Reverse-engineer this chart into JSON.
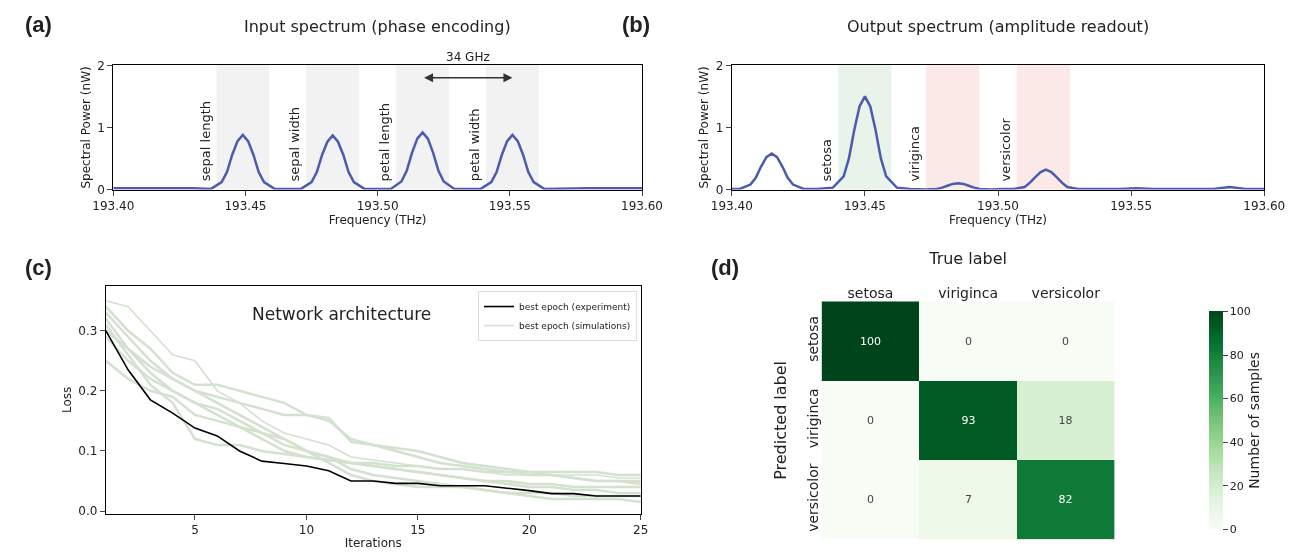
{
  "chart_data": [
    {
      "type": "line",
      "title": "Input spectrum (phase encoding)",
      "xlabel": "Frequency (THz)",
      "ylabel": "Spectral Power (nW)",
      "annotations": [
        "(a)",
        "34 GHz"
      ],
      "x": [
        193.4,
        193.43,
        193.437,
        193.441,
        193.443,
        193.445,
        193.447,
        193.449,
        193.451,
        193.453,
        193.455,
        193.457,
        193.461,
        193.466,
        193.471,
        193.475,
        193.477,
        193.479,
        193.481,
        193.483,
        193.485,
        193.487,
        193.489,
        193.491,
        193.495,
        193.5,
        193.505,
        193.509,
        193.511,
        193.513,
        193.515,
        193.517,
        193.519,
        193.521,
        193.523,
        193.525,
        193.529,
        193.534,
        193.539,
        193.543,
        193.545,
        193.547,
        193.549,
        193.551,
        193.553,
        193.555,
        193.557,
        193.559,
        193.563,
        193.58,
        193.6
      ],
      "series": [
        {
          "color": "#4a5bb0",
          "values": [
            0.02,
            0.02,
            0.01,
            0.12,
            0.28,
            0.56,
            0.78,
            0.88,
            0.78,
            0.56,
            0.28,
            0.12,
            0.01,
            0.01,
            0.01,
            0.12,
            0.28,
            0.56,
            0.77,
            0.87,
            0.77,
            0.56,
            0.28,
            0.12,
            0.01,
            0.01,
            0.01,
            0.13,
            0.3,
            0.59,
            0.82,
            0.92,
            0.82,
            0.59,
            0.3,
            0.13,
            0.01,
            0.01,
            0.01,
            0.12,
            0.28,
            0.56,
            0.78,
            0.88,
            0.78,
            0.56,
            0.28,
            0.12,
            0.01,
            0.02,
            0.02
          ]
        }
      ],
      "bands": [
        {
          "axis": "x",
          "from": 193.439,
          "to": 193.459,
          "label": "sepal length",
          "color": "#f2f2f2"
        },
        {
          "axis": "x",
          "from": 193.473,
          "to": 193.493,
          "label": "sepal width",
          "color": "#f2f2f2"
        },
        {
          "axis": "x",
          "from": 193.507,
          "to": 193.527,
          "label": "petal length",
          "color": "#f2f2f2"
        },
        {
          "axis": "x",
          "from": 193.541,
          "to": 193.561,
          "label": "petal width",
          "color": "#f2f2f2"
        }
      ],
      "xlim": [
        193.4,
        193.6
      ],
      "xticks": [
        {
          "value": 193.4,
          "label": "193.40"
        },
        {
          "value": 193.45,
          "label": "193.45"
        },
        {
          "value": 193.5,
          "label": "193.50"
        },
        {
          "value": 193.55,
          "label": "193.55"
        },
        {
          "value": 193.6,
          "label": "193.60"
        }
      ],
      "ylim": [
        0,
        2
      ],
      "yticks": [
        0,
        1,
        2
      ],
      "grid": false,
      "legend": false,
      "marker": "none",
      "line_style": "solid"
    },
    {
      "type": "line",
      "title": "Output spectrum (amplitude readout)",
      "xlabel": "Frequency (THz)",
      "ylabel": "Spectral Power (nW)",
      "annotations": [
        "(b)"
      ],
      "x": [
        193.4,
        193.403,
        193.407,
        193.409,
        193.411,
        193.413,
        193.415,
        193.417,
        193.419,
        193.421,
        193.423,
        193.427,
        193.432,
        193.438,
        193.442,
        193.444,
        193.446,
        193.448,
        193.45,
        193.452,
        193.454,
        193.456,
        193.458,
        193.462,
        193.467,
        193.473,
        193.477,
        193.479,
        193.481,
        193.483,
        193.485,
        193.487,
        193.489,
        193.491,
        193.493,
        193.497,
        193.502,
        193.506,
        193.51,
        193.512,
        193.514,
        193.516,
        193.518,
        193.52,
        193.522,
        193.524,
        193.526,
        193.53,
        193.54,
        193.546,
        193.552,
        193.558,
        193.57,
        193.581,
        193.587,
        193.593,
        193.6
      ],
      "series": [
        {
          "color": "#4a5bb0",
          "values": [
            0.01,
            0.01,
            0.08,
            0.19,
            0.37,
            0.52,
            0.58,
            0.52,
            0.37,
            0.19,
            0.08,
            0.01,
            0.01,
            0.03,
            0.21,
            0.5,
            0.96,
            1.34,
            1.5,
            1.34,
            0.96,
            0.5,
            0.21,
            0.03,
            0.01,
            0.0,
            0.01,
            0.03,
            0.06,
            0.09,
            0.1,
            0.09,
            0.06,
            0.03,
            0.01,
            0.0,
            0.01,
            0.01,
            0.04,
            0.11,
            0.2,
            0.28,
            0.32,
            0.28,
            0.2,
            0.11,
            0.04,
            0.01,
            0.01,
            0.01,
            0.02,
            0.01,
            0.01,
            0.01,
            0.04,
            0.01,
            0.01
          ]
        }
      ],
      "bands": [
        {
          "axis": "x",
          "from": 193.44,
          "to": 193.46,
          "label": "setosa",
          "color": "#e8f3ea"
        },
        {
          "axis": "x",
          "from": 193.473,
          "to": 193.493,
          "label": "viriginca",
          "color": "#fbe9e8"
        },
        {
          "axis": "x",
          "from": 193.507,
          "to": 193.527,
          "label": "versicolor",
          "color": "#fbe9e8"
        }
      ],
      "xlim": [
        193.4,
        193.6
      ],
      "xticks": [
        {
          "value": 193.4,
          "label": "193.40"
        },
        {
          "value": 193.45,
          "label": "193.45"
        },
        {
          "value": 193.5,
          "label": "193.50"
        },
        {
          "value": 193.55,
          "label": "193.55"
        },
        {
          "value": 193.6,
          "label": "193.60"
        }
      ],
      "ylim": [
        0,
        2
      ],
      "yticks": [
        0,
        1,
        2
      ],
      "grid": false,
      "legend": false,
      "marker": "none",
      "line_style": "solid"
    },
    {
      "type": "line",
      "xlabel": "Iterations",
      "ylabel": "Loss",
      "annotations": [
        "(c)",
        "Network architecture"
      ],
      "x": [
        1,
        2,
        3,
        4,
        5,
        6,
        7,
        8,
        9,
        10,
        11,
        12,
        13,
        14,
        15,
        16,
        17,
        18,
        19,
        20,
        21,
        22,
        23,
        24,
        25
      ],
      "series": [
        {
          "name": "best epoch (simulations)",
          "color": "#d3e1cf",
          "values": [
            0.35,
            0.34,
            0.3,
            0.26,
            0.25,
            0.2,
            0.18,
            0.15,
            0.13,
            0.12,
            0.11,
            0.09,
            0.085,
            0.08,
            0.075,
            0.07,
            0.07,
            0.065,
            0.06,
            0.06,
            0.06,
            0.06,
            0.06,
            0.055,
            0.055
          ]
        },
        {
          "color": "#d3e1cf",
          "values": [
            0.33,
            0.29,
            0.25,
            0.22,
            0.2,
            0.19,
            0.18,
            0.17,
            0.16,
            0.16,
            0.15,
            0.12,
            0.11,
            0.1,
            0.09,
            0.08,
            0.075,
            0.07,
            0.065,
            0.06,
            0.06,
            0.055,
            0.05,
            0.05,
            0.05
          ]
        },
        {
          "color": "#d3e1cf",
          "values": [
            0.32,
            0.27,
            0.23,
            0.2,
            0.18,
            0.17,
            0.15,
            0.13,
            0.11,
            0.1,
            0.09,
            0.08,
            0.075,
            0.07,
            0.065,
            0.06,
            0.055,
            0.05,
            0.05,
            0.045,
            0.045,
            0.04,
            0.04,
            0.04,
            0.04
          ]
        },
        {
          "color": "#d3e1cf",
          "values": [
            0.29,
            0.25,
            0.22,
            0.2,
            0.18,
            0.16,
            0.14,
            0.12,
            0.1,
            0.09,
            0.085,
            0.08,
            0.075,
            0.07,
            0.065,
            0.06,
            0.055,
            0.05,
            0.045,
            0.04,
            0.04,
            0.035,
            0.035,
            0.03,
            0.03
          ]
        },
        {
          "color": "#d3e1cf",
          "values": [
            0.31,
            0.26,
            0.21,
            0.18,
            0.12,
            0.11,
            0.11,
            0.1,
            0.095,
            0.09,
            0.085,
            0.08,
            0.08,
            0.075,
            0.075,
            0.07,
            0.07,
            0.065,
            0.065,
            0.065,
            0.065,
            0.065,
            0.065,
            0.06,
            0.06
          ]
        },
        {
          "color": "#d3e1cf",
          "values": [
            0.25,
            0.22,
            0.2,
            0.19,
            0.16,
            0.15,
            0.14,
            0.13,
            0.12,
            0.1,
            0.08,
            0.06,
            0.05,
            0.045,
            0.04,
            0.04,
            0.04,
            0.035,
            0.03,
            0.025,
            0.02,
            0.02,
            0.02,
            0.02,
            0.015
          ]
        },
        {
          "color": "#d3e1cf",
          "values": [
            0.34,
            0.3,
            0.27,
            0.23,
            0.21,
            0.21,
            0.2,
            0.19,
            0.18,
            0.16,
            0.155,
            0.115,
            0.11,
            0.105,
            0.1,
            0.09,
            0.08,
            0.075,
            0.07,
            0.065,
            0.06,
            0.055,
            0.05,
            0.05,
            0.045
          ]
        },
        {
          "color": "#d3e1cf",
          "values": [
            0.3,
            0.27,
            0.24,
            0.22,
            0.2,
            0.18,
            0.16,
            0.14,
            0.12,
            0.1,
            0.09,
            0.07,
            0.06,
            0.055,
            0.05,
            0.045,
            0.04,
            0.035,
            0.03,
            0.03,
            0.03,
            0.025,
            0.025,
            0.025,
            0.025
          ]
        },
        {
          "name": "best epoch (experiment)",
          "color": "#000000",
          "values": [
            0.3,
            0.235,
            0.185,
            0.163,
            0.138,
            0.125,
            0.1,
            0.083,
            0.079,
            0.075,
            0.067,
            0.05,
            0.05,
            0.046,
            0.046,
            0.042,
            0.042,
            0.042,
            0.038,
            0.034,
            0.029,
            0.029,
            0.025,
            0.025,
            0.025
          ]
        }
      ],
      "xlim": [
        1,
        25
      ],
      "xticks": [
        5,
        10,
        15,
        20,
        25
      ],
      "ylim": [
        -0.005,
        0.375
      ],
      "yticks": [
        {
          "value": 0,
          "label": "0.0"
        },
        {
          "value": 0.1,
          "label": "0.1"
        },
        {
          "value": 0.2,
          "label": "0.2"
        },
        {
          "value": 0.3,
          "label": "0.3"
        }
      ],
      "grid": false,
      "legend": "top right",
      "marker": "none",
      "line_style": "solid"
    },
    {
      "type": "heatmap",
      "xlabel": "True label",
      "ylabel": "Predicted label",
      "clabel": "Number of samples",
      "annotations": [
        "(d)"
      ],
      "categories": [
        "setosa",
        "viriginca",
        "versicolor"
      ],
      "y_categories": [
        "setosa",
        "viriginca",
        "versicolor"
      ],
      "cells": [
        [
          100,
          0,
          0
        ],
        [
          0,
          93,
          18
        ],
        [
          0,
          7,
          82
        ]
      ],
      "clim": [
        0,
        100
      ],
      "cticks": [
        0,
        20,
        40,
        60,
        80,
        100
      ],
      "data_labels": true
    }
  ]
}
